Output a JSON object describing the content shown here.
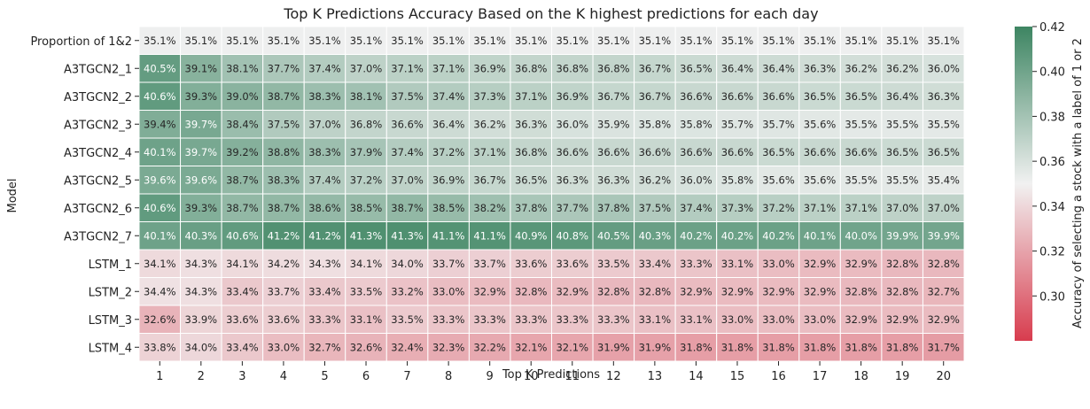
{
  "chart_data": {
    "type": "heatmap",
    "title": "Top K Predictions Accuracy Based on the K highest predictions for each day",
    "xlabel": "Top K Predictions",
    "ylabel": "Model",
    "colorbar_label": "Accuracy of selecting a stock with a label of 1 or 2",
    "x_categories": [
      "1",
      "2",
      "3",
      "4",
      "5",
      "6",
      "7",
      "8",
      "9",
      "10",
      "11",
      "12",
      "13",
      "14",
      "15",
      "16",
      "17",
      "18",
      "19",
      "20"
    ],
    "y_categories": [
      "Proportion of 1&2",
      "A3TGCN2_1",
      "A3TGCN2_2",
      "A3TGCN2_3",
      "A3TGCN2_4",
      "A3TGCN2_5",
      "A3TGCN2_6",
      "A3TGCN2_7",
      "LSTM_1",
      "LSTM_2",
      "LSTM_3",
      "LSTM_4"
    ],
    "values": [
      [
        35.1,
        35.1,
        35.1,
        35.1,
        35.1,
        35.1,
        35.1,
        35.1,
        35.1,
        35.1,
        35.1,
        35.1,
        35.1,
        35.1,
        35.1,
        35.1,
        35.1,
        35.1,
        35.1,
        35.1
      ],
      [
        40.5,
        39.1,
        38.1,
        37.7,
        37.4,
        37.0,
        37.1,
        37.1,
        36.9,
        36.8,
        36.8,
        36.8,
        36.7,
        36.5,
        36.4,
        36.4,
        36.3,
        36.2,
        36.2,
        36.0
      ],
      [
        40.6,
        39.3,
        39.0,
        38.7,
        38.3,
        38.1,
        37.5,
        37.4,
        37.3,
        37.1,
        36.9,
        36.7,
        36.7,
        36.6,
        36.6,
        36.6,
        36.5,
        36.5,
        36.4,
        36.3
      ],
      [
        39.4,
        39.7,
        38.4,
        37.5,
        37.0,
        36.8,
        36.6,
        36.4,
        36.2,
        36.3,
        36.0,
        35.9,
        35.8,
        35.8,
        35.7,
        35.7,
        35.6,
        35.5,
        35.5,
        35.5
      ],
      [
        40.1,
        39.7,
        39.2,
        38.8,
        38.3,
        37.9,
        37.4,
        37.2,
        37.1,
        36.8,
        36.6,
        36.6,
        36.6,
        36.6,
        36.6,
        36.5,
        36.6,
        36.6,
        36.5,
        36.5
      ],
      [
        39.6,
        39.6,
        38.7,
        38.3,
        37.4,
        37.2,
        37.0,
        36.9,
        36.7,
        36.5,
        36.3,
        36.3,
        36.2,
        36.0,
        35.8,
        35.6,
        35.6,
        35.5,
        35.5,
        35.4
      ],
      [
        40.6,
        39.3,
        38.7,
        38.7,
        38.6,
        38.5,
        38.7,
        38.5,
        38.2,
        37.8,
        37.7,
        37.8,
        37.5,
        37.4,
        37.3,
        37.2,
        37.1,
        37.1,
        37.0,
        37.0
      ],
      [
        40.1,
        40.3,
        40.6,
        41.2,
        41.2,
        41.3,
        41.3,
        41.1,
        41.1,
        40.9,
        40.8,
        40.5,
        40.3,
        40.2,
        40.2,
        40.2,
        40.1,
        40.0,
        39.9,
        39.9
      ],
      [
        34.1,
        34.3,
        34.1,
        34.2,
        34.3,
        34.1,
        34.0,
        33.7,
        33.7,
        33.6,
        33.6,
        33.5,
        33.4,
        33.3,
        33.1,
        33.0,
        32.9,
        32.9,
        32.8,
        32.8
      ],
      [
        34.4,
        34.3,
        33.4,
        33.7,
        33.4,
        33.5,
        33.2,
        33.0,
        32.9,
        32.8,
        32.9,
        32.8,
        32.8,
        32.9,
        32.9,
        32.9,
        32.9,
        32.8,
        32.8,
        32.7
      ],
      [
        32.6,
        33.9,
        33.6,
        33.6,
        33.3,
        33.1,
        33.5,
        33.3,
        33.3,
        33.3,
        33.3,
        33.3,
        33.1,
        33.1,
        33.0,
        33.0,
        33.0,
        32.9,
        32.9,
        32.9
      ],
      [
        33.8,
        34.0,
        33.4,
        33.0,
        32.7,
        32.6,
        32.4,
        32.3,
        32.2,
        32.1,
        32.1,
        31.9,
        31.9,
        31.8,
        31.8,
        31.8,
        31.8,
        31.8,
        31.8,
        31.7
      ]
    ],
    "value_suffix": "%",
    "color_scale": {
      "min": 0.28,
      "center": 0.35,
      "max": 0.42,
      "low_color": "#d83c4e",
      "mid_color": "#f1f1f1",
      "high_color": "#3d8562"
    },
    "colorbar_ticks": [
      "0.30",
      "0.32",
      "0.34",
      "0.36",
      "0.38",
      "0.40",
      "0.42"
    ],
    "grid": false,
    "legend": "colorbar-right"
  }
}
